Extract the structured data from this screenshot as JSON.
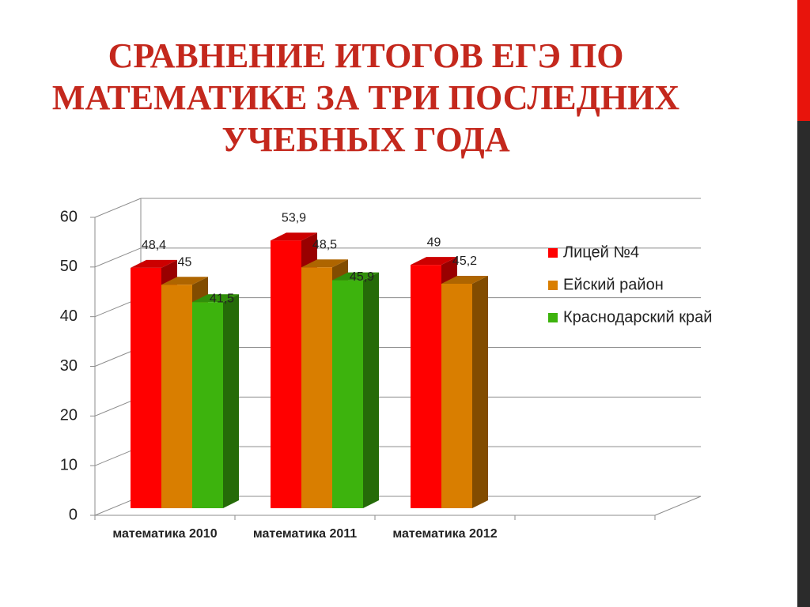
{
  "chart_data": {
    "type": "bar3d",
    "title": "СРАВНЕНИЕ ИТОГОВ ЕГЭ ПО МАТЕМАТИКЕ ЗА ТРИ ПОСЛЕДНИХ УЧЕБНЫХ ГОДА",
    "categories": [
      "математика 2010",
      "математика 2011",
      "математика 2012",
      null
    ],
    "series": [
      {
        "name": "Лицей №4",
        "color": "#ff0000",
        "values": [
          48.4,
          53.9,
          49,
          null
        ],
        "value_labels": [
          "48,4",
          "53,9",
          "49",
          null
        ]
      },
      {
        "name": "Ейский район",
        "color": "#d97e00",
        "values": [
          45,
          48.5,
          45.2,
          null
        ],
        "value_labels": [
          "45",
          "48,5",
          "45,2",
          null
        ]
      },
      {
        "name": "Краснодарский край",
        "color": "#3db30d",
        "values": [
          41.5,
          45.9,
          null,
          null
        ],
        "value_labels": [
          "41,5",
          "45,9",
          null,
          null
        ]
      }
    ],
    "ylim": [
      0,
      60
    ],
    "yticks": [
      0,
      10,
      20,
      30,
      40,
      50,
      60
    ],
    "grid": true,
    "legend": "right"
  }
}
